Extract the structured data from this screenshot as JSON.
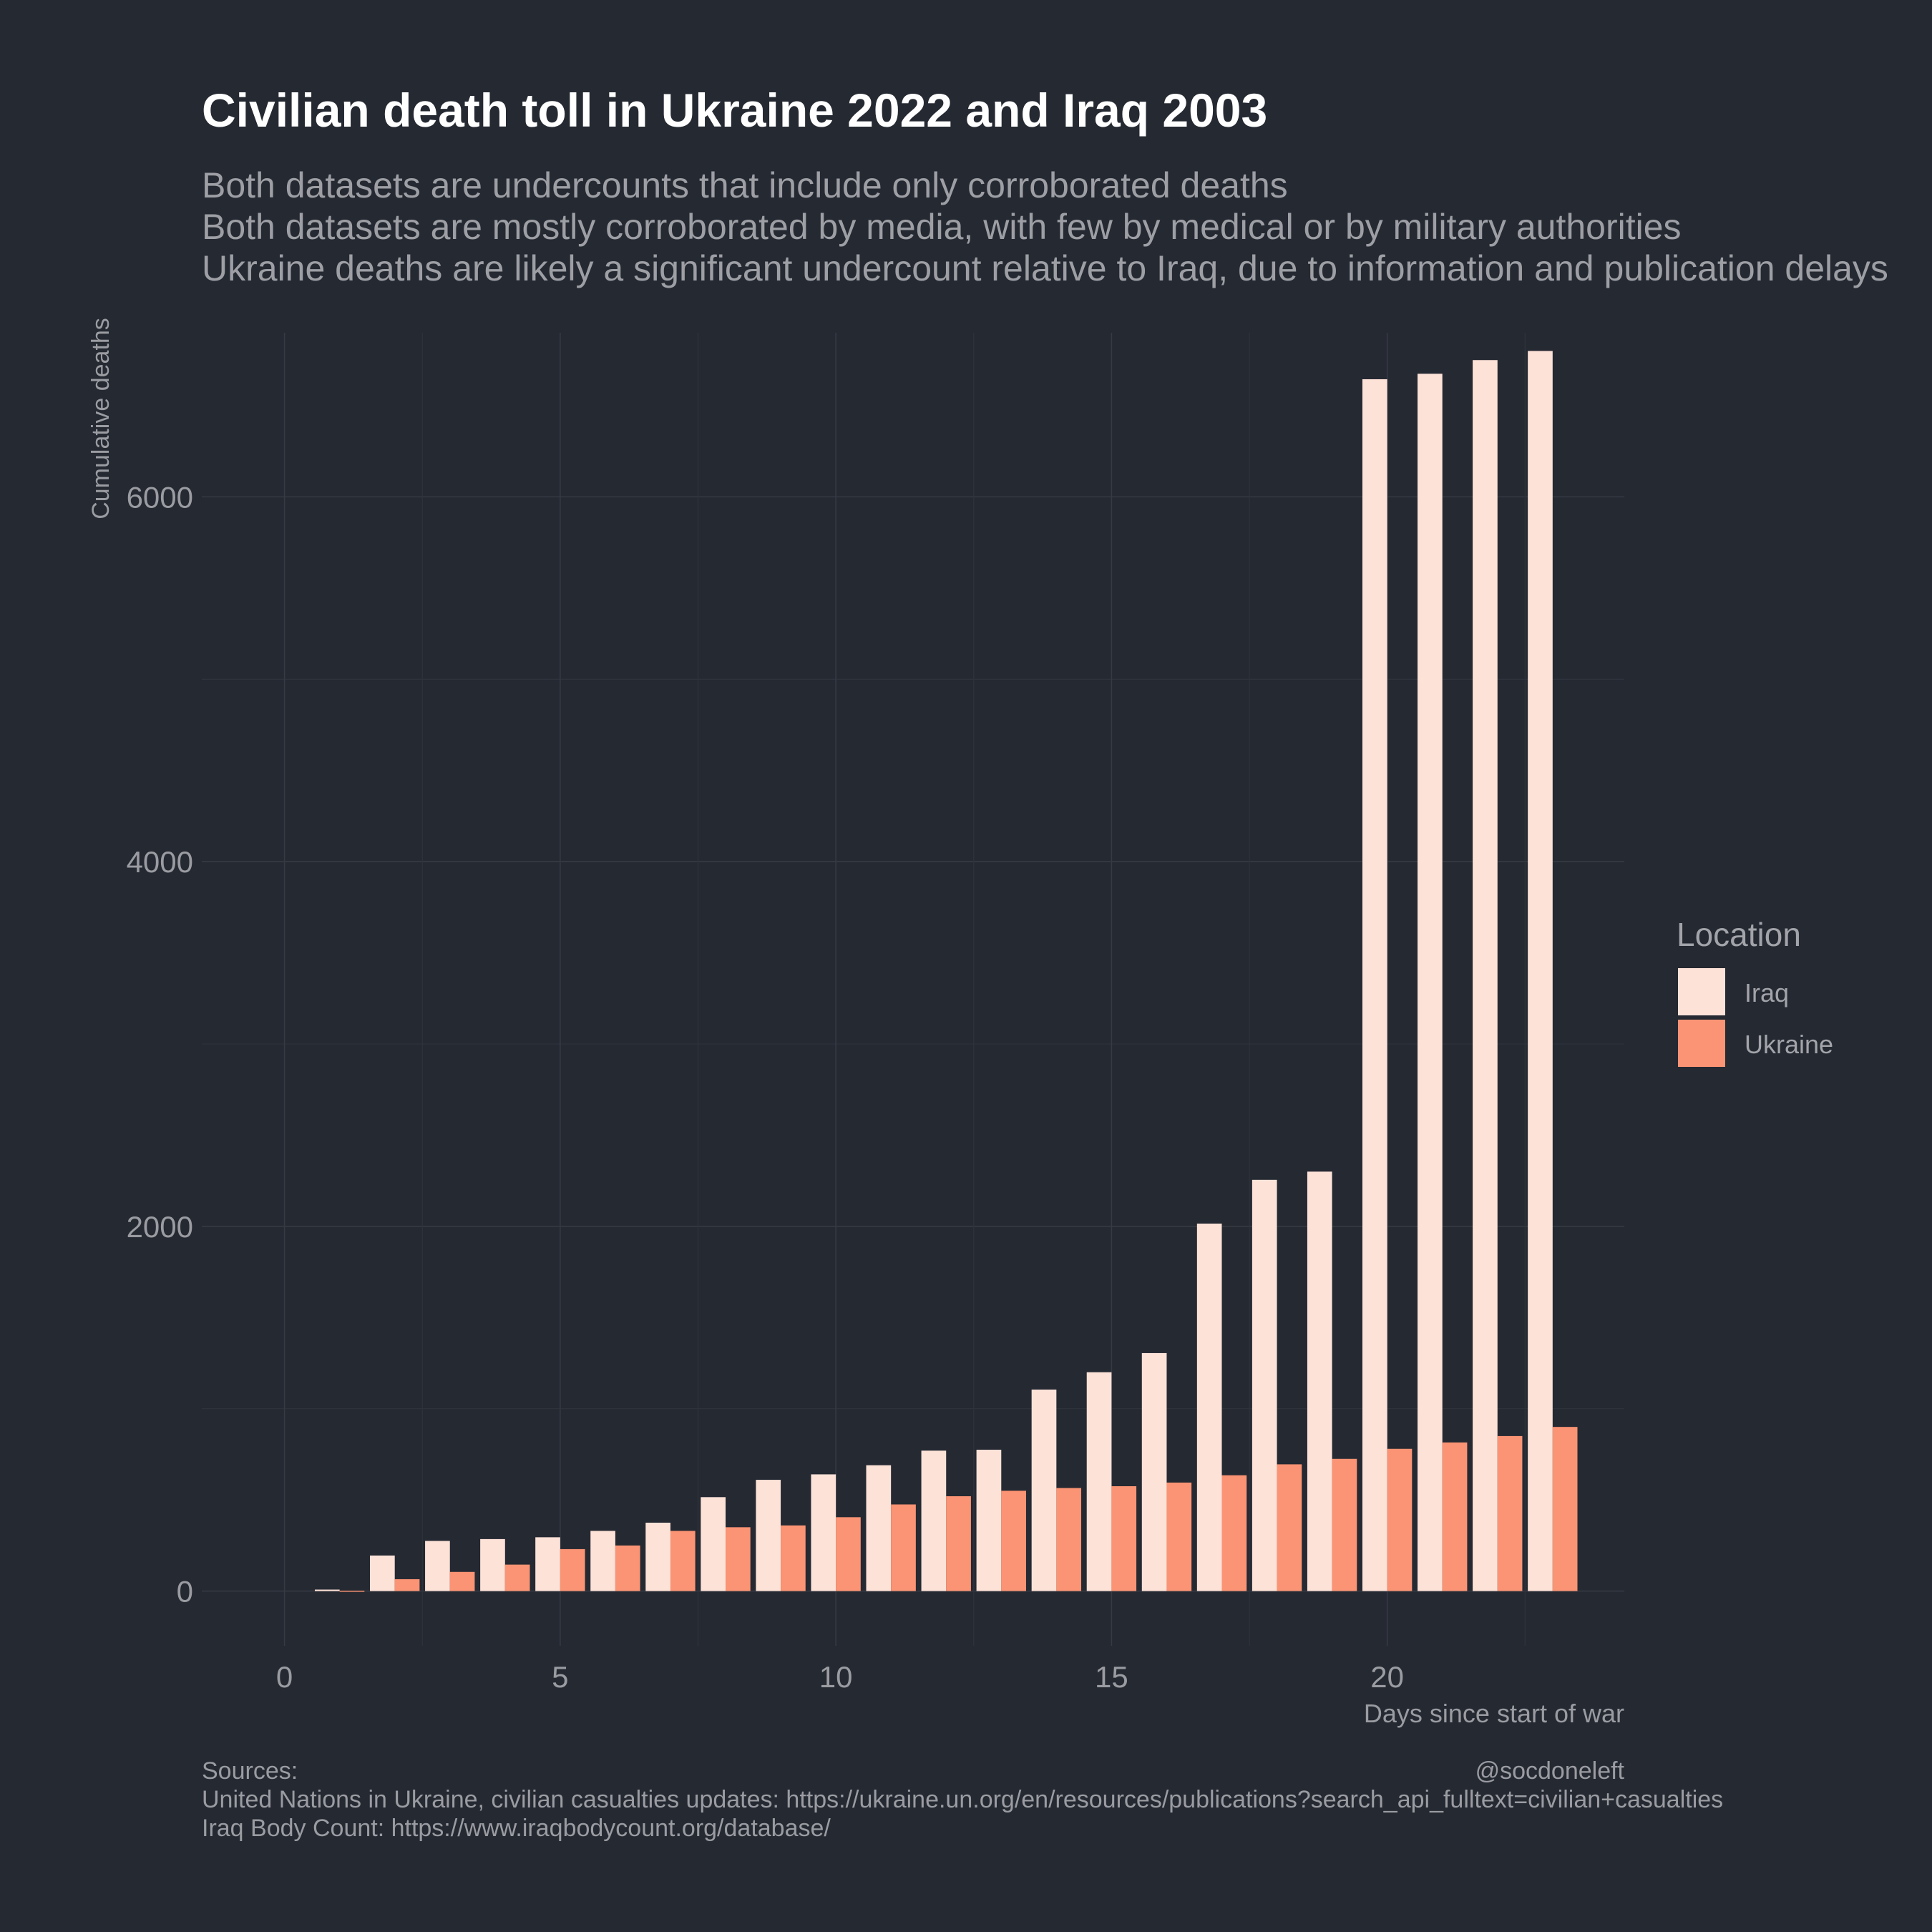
{
  "chart_data": {
    "type": "bar",
    "title": "Civilian death toll in Ukraine 2022 and Iraq 2003",
    "subtitle": [
      "Both datasets are undercounts that include only corroborated deaths",
      "Both datasets are mostly corroborated by media, with few by medical or by military authorities",
      "Ukraine deaths are likely a significant undercount relative to Iraq, due to information and publication delays"
    ],
    "xlabel": "Days since start of war",
    "ylabel": "Cumulative deaths",
    "xlim": [
      -1.5,
      24.3
    ],
    "ylim": [
      -300,
      6900
    ],
    "x_ticks": [
      0,
      5,
      10,
      15,
      20
    ],
    "y_ticks": [
      0,
      2000,
      4000,
      6000
    ],
    "grid": true,
    "legend": {
      "title": "Location",
      "position": "right",
      "entries": [
        {
          "name": "Iraq",
          "color": "#fde2d8"
        },
        {
          "name": "Ukraine",
          "color": "#fb9474"
        }
      ]
    },
    "x": [
      1,
      2,
      3,
      4,
      5,
      6,
      7,
      8,
      9,
      10,
      11,
      12,
      13,
      14,
      15,
      16,
      17,
      18,
      19,
      20,
      21,
      22,
      23
    ],
    "series": [
      {
        "name": "Iraq",
        "color": "#fde2d8",
        "values": [
          8,
          195,
          275,
          285,
          295,
          330,
          375,
          515,
          610,
          640,
          690,
          770,
          775,
          1105,
          1200,
          1305,
          2015,
          2255,
          2300,
          6645,
          6675,
          6750,
          6800
        ]
      },
      {
        "name": "Ukraine",
        "color": "#fb9474",
        "values": [
          2,
          65,
          105,
          145,
          230,
          250,
          330,
          350,
          360,
          405,
          475,
          520,
          550,
          565,
          575,
          595,
          635,
          695,
          725,
          780,
          815,
          850,
          900
        ]
      }
    ]
  },
  "caption": {
    "left_lines": [
      "Sources:",
      "United Nations in Ukraine, civilian casualties updates: https://ukraine.un.org/en/resources/publications?search_api_fulltext=civilian+casualties",
      "Iraq Body Count: https://www.iraqbodycount.org/database/"
    ],
    "right": "@socdoneleft"
  }
}
